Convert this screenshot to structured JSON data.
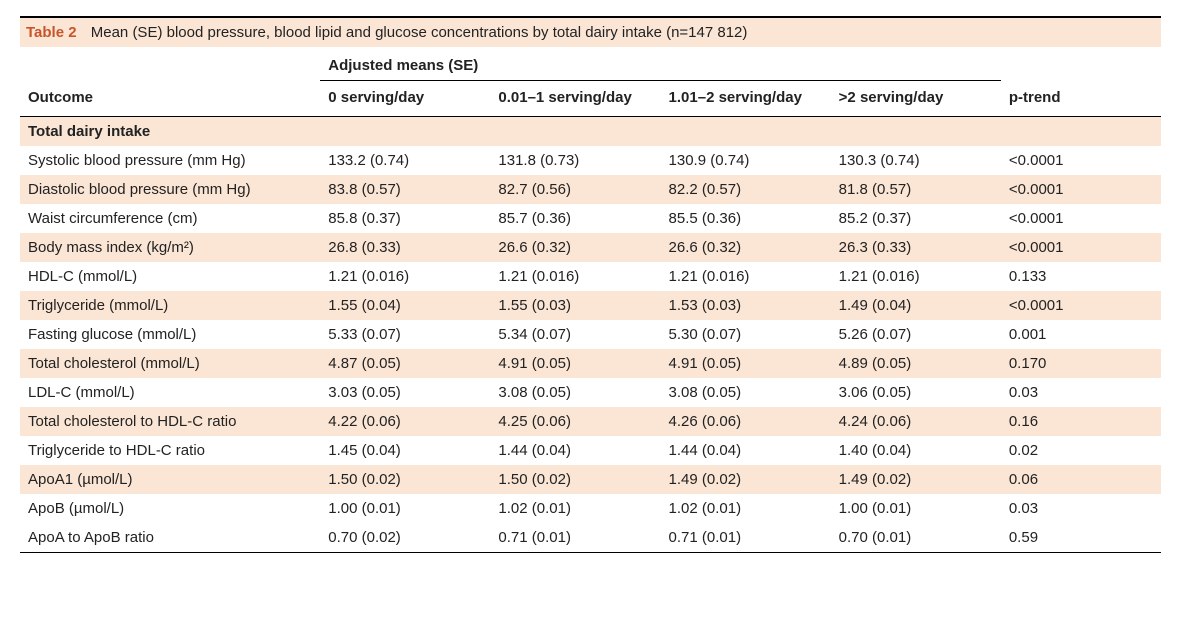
{
  "table": {
    "label": "Table 2",
    "caption": "Mean (SE) blood pressure, blood lipid and glucose concentrations by total dairy intake (n=147 812)",
    "header_group": "Adjusted means (SE)",
    "columns": {
      "outcome": "Outcome",
      "c1": "0 serving/day",
      "c2": "0.01–1 serving/day",
      "c3": "1.01–2 serving/day",
      "c4": ">2 serving/day",
      "c5": "p-trend"
    },
    "section": "Total dairy intake",
    "rows": [
      {
        "outcome": "Systolic blood pressure (mm Hg)",
        "v": [
          "133.2 (0.74)",
          "131.8 (0.73)",
          "130.9 (0.74)",
          "130.3 (0.74)",
          "<0.0001"
        ]
      },
      {
        "outcome": "Diastolic blood pressure (mm Hg)",
        "v": [
          "83.8 (0.57)",
          "82.7 (0.56)",
          "82.2 (0.57)",
          "81.8 (0.57)",
          "<0.0001"
        ]
      },
      {
        "outcome": "Waist circumference (cm)",
        "v": [
          "85.8 (0.37)",
          "85.7 (0.36)",
          "85.5 (0.36)",
          "85.2 (0.37)",
          "<0.0001"
        ]
      },
      {
        "outcome": "Body mass index (kg/m²)",
        "v": [
          "26.8 (0.33)",
          "26.6 (0.32)",
          "26.6 (0.32)",
          "26.3 (0.33)",
          "<0.0001"
        ]
      },
      {
        "outcome": "HDL-C (mmol/L)",
        "v": [
          "1.21 (0.016)",
          "1.21 (0.016)",
          "1.21 (0.016)",
          "1.21 (0.016)",
          "0.133"
        ]
      },
      {
        "outcome": "Triglyceride (mmol/L)",
        "v": [
          "1.55 (0.04)",
          "1.55 (0.03)",
          "1.53 (0.03)",
          "1.49 (0.04)",
          "<0.0001"
        ]
      },
      {
        "outcome": "Fasting glucose (mmol/L)",
        "v": [
          "5.33 (0.07)",
          "5.34 (0.07)",
          "5.30 (0.07)",
          "5.26 (0.07)",
          "0.001"
        ]
      },
      {
        "outcome": "Total cholesterol (mmol/L)",
        "v": [
          "4.87 (0.05)",
          "4.91 (0.05)",
          "4.91 (0.05)",
          "4.89 (0.05)",
          "0.170"
        ]
      },
      {
        "outcome": "LDL-C (mmol/L)",
        "v": [
          "3.03 (0.05)",
          "3.08 (0.05)",
          "3.08 (0.05)",
          "3.06 (0.05)",
          "0.03"
        ]
      },
      {
        "outcome": "Total cholesterol to HDL-C ratio",
        "v": [
          "4.22 (0.06)",
          "4.25 (0.06)",
          "4.26 (0.06)",
          "4.24 (0.06)",
          "0.16"
        ]
      },
      {
        "outcome": "Triglyceride to HDL-C ratio",
        "v": [
          "1.45 (0.04)",
          "1.44 (0.04)",
          "1.44 (0.04)",
          "1.40 (0.04)",
          "0.02"
        ]
      },
      {
        "outcome": "ApoA1 (µmol/L)",
        "v": [
          "1.50 (0.02)",
          "1.50 (0.02)",
          "1.49 (0.02)",
          "1.49 (0.02)",
          "0.06"
        ]
      },
      {
        "outcome": "ApoB (µmol/L)",
        "v": [
          "1.00 (0.01)",
          "1.02 (0.01)",
          "1.02 (0.01)",
          "1.00 (0.01)",
          "0.03"
        ]
      },
      {
        "outcome": "ApoA to ApoB ratio",
        "v": [
          "0.70 (0.02)",
          "0.71 (0.01)",
          "0.71 (0.01)",
          "0.70 (0.01)",
          "0.59"
        ]
      }
    ],
    "colors": {
      "shade": "#fbe6d6",
      "accent": "#c85527",
      "rule": "#000000",
      "text": "#222222"
    },
    "fontsize_pt": 15
  }
}
